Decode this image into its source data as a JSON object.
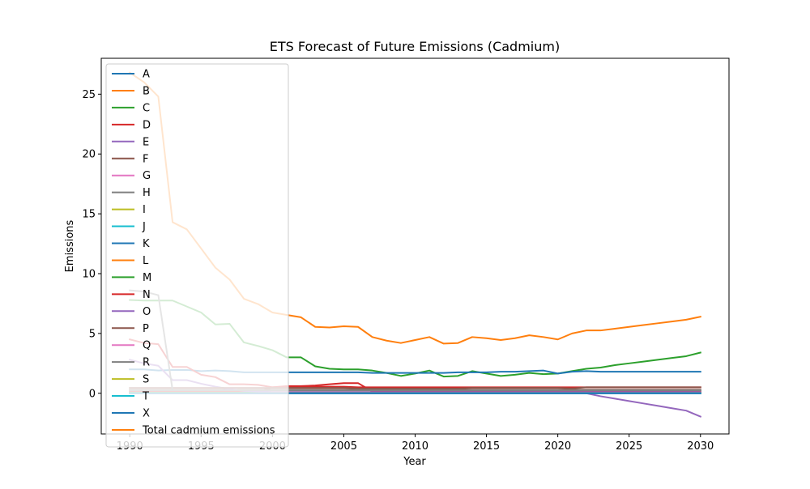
{
  "chart_data": {
    "type": "line",
    "title": "ETS Forecast of Future Emissions (Cadmium)",
    "xlabel": "Year",
    "ylabel": "Emissions",
    "xlim": [
      1988,
      2032
    ],
    "ylim": [
      -3.4,
      28
    ],
    "xticks": [
      1990,
      1995,
      2000,
      2005,
      2010,
      2015,
      2020,
      2025,
      2030
    ],
    "xtick_labels": [
      "1990",
      "1995",
      "2000",
      "2005",
      "2010",
      "2015",
      "2020",
      "2025",
      "2030"
    ],
    "yticks": [
      0,
      5,
      10,
      15,
      20,
      25
    ],
    "ytick_labels": [
      "0",
      "5",
      "10",
      "15",
      "20",
      "25"
    ],
    "grid": false,
    "legend_position": "upper left",
    "x": [
      1990,
      1991,
      1992,
      1993,
      1994,
      1995,
      1996,
      1997,
      1998,
      1999,
      2000,
      2001,
      2002,
      2003,
      2004,
      2005,
      2006,
      2007,
      2008,
      2009,
      2010,
      2011,
      2012,
      2013,
      2014,
      2015,
      2016,
      2017,
      2018,
      2019,
      2020,
      2021,
      2022,
      2023,
      2024,
      2025,
      2026,
      2027,
      2028,
      2029,
      2030
    ],
    "series": [
      {
        "name": "A",
        "color": "#1f77b4",
        "values": [
          0.05,
          0.05,
          0.05,
          0.05,
          0.05,
          0.05,
          0.05,
          0.05,
          0.05,
          0.05,
          0.05,
          0.05,
          0.05,
          0.05,
          0.05,
          0.05,
          0.05,
          0.05,
          0.05,
          0.05,
          0.05,
          0.05,
          0.05,
          0.05,
          0.05,
          0.05,
          0.05,
          0.05,
          0.05,
          0.05,
          0.05,
          0.05,
          0.05,
          0.05,
          0.05,
          0.05,
          0.05,
          0.05,
          0.05,
          0.05,
          0.05
        ]
      },
      {
        "name": "B",
        "color": "#ff7f0e",
        "values": [
          0.1,
          0.1,
          0.1,
          0.1,
          0.1,
          0.1,
          0.1,
          0.1,
          0.1,
          0.1,
          0.1,
          0.1,
          0.1,
          0.1,
          0.1,
          0.1,
          0.1,
          0.1,
          0.1,
          0.1,
          0.1,
          0.1,
          0.1,
          0.1,
          0.1,
          0.1,
          0.1,
          0.1,
          0.1,
          0.1,
          0.1,
          0.1,
          0.1,
          0.1,
          0.1,
          0.1,
          0.1,
          0.1,
          0.1,
          0.1,
          0.1
        ]
      },
      {
        "name": "C",
        "color": "#2ca02c",
        "values": [
          7.8,
          7.75,
          7.75,
          7.75,
          7.25,
          6.75,
          5.75,
          5.8,
          4.25,
          3.95,
          3.6,
          3.0,
          3.0,
          2.25,
          2.05,
          2.0,
          2.0,
          1.9,
          1.7,
          1.45,
          1.65,
          1.9,
          1.4,
          1.45,
          1.85,
          1.65,
          1.45,
          1.55,
          1.7,
          1.6,
          1.65,
          1.85,
          2.05,
          2.15,
          2.35,
          2.5,
          2.65,
          2.8,
          2.95,
          3.1,
          3.4
        ]
      },
      {
        "name": "D",
        "color": "#d62728",
        "values": [
          0.15,
          0.15,
          0.15,
          0.15,
          0.15,
          0.15,
          0.15,
          0.15,
          0.15,
          0.15,
          0.5,
          0.6,
          0.6,
          0.65,
          0.75,
          0.85,
          0.85,
          0.15,
          0.15,
          0.2,
          0.2,
          0.2,
          0.2,
          0.2,
          0.2,
          0.2,
          0.2,
          0.2,
          0.2,
          0.2,
          0.2,
          0.2,
          0.2,
          0.2,
          0.2,
          0.2,
          0.2,
          0.2,
          0.2,
          0.2,
          0.2
        ]
      },
      {
        "name": "E",
        "color": "#9467bd",
        "values": [
          0.0,
          0.0,
          0.0,
          0.0,
          0.0,
          0.0,
          0.0,
          0.0,
          0.0,
          0.0,
          0.0,
          0.0,
          0.0,
          0.0,
          0.0,
          0.0,
          0.0,
          0.0,
          0.0,
          0.0,
          0.0,
          0.0,
          0.0,
          0.0,
          0.0,
          0.0,
          0.0,
          0.0,
          0.0,
          0.0,
          0.0,
          0.0,
          0.0,
          -0.25,
          -0.45,
          -0.65,
          -0.85,
          -1.05,
          -1.25,
          -1.45,
          -1.95
        ]
      },
      {
        "name": "F",
        "color": "#8c564b",
        "values": [
          0.3,
          0.3,
          0.3,
          0.3,
          0.3,
          0.3,
          0.3,
          0.3,
          0.3,
          0.3,
          0.3,
          0.3,
          0.3,
          0.3,
          0.3,
          0.3,
          0.3,
          0.3,
          0.3,
          0.3,
          0.3,
          0.3,
          0.3,
          0.3,
          0.3,
          0.3,
          0.3,
          0.3,
          0.3,
          0.3,
          0.3,
          0.3,
          0.3,
          0.3,
          0.3,
          0.3,
          0.3,
          0.3,
          0.3,
          0.3,
          0.3
        ]
      },
      {
        "name": "G",
        "color": "#e377c2",
        "values": [
          0.02,
          0.02,
          0.02,
          0.02,
          0.02,
          0.02,
          0.02,
          0.02,
          0.02,
          0.02,
          0.02,
          0.02,
          0.02,
          0.02,
          0.02,
          0.02,
          0.02,
          0.02,
          0.02,
          0.02,
          0.02,
          0.02,
          0.02,
          0.02,
          0.02,
          0.02,
          0.02,
          0.02,
          0.02,
          0.02,
          0.02,
          0.02,
          0.02,
          0.02,
          0.02,
          0.02,
          0.02,
          0.02,
          0.02,
          0.02,
          0.02
        ]
      },
      {
        "name": "H",
        "color": "#7f7f7f",
        "values": [
          0.25,
          0.25,
          0.25,
          0.25,
          0.25,
          0.25,
          0.25,
          0.25,
          0.25,
          0.25,
          0.25,
          0.25,
          0.25,
          0.25,
          0.25,
          0.25,
          0.25,
          0.25,
          0.25,
          0.25,
          0.25,
          0.25,
          0.25,
          0.25,
          0.25,
          0.25,
          0.25,
          0.25,
          0.25,
          0.25,
          0.25,
          0.25,
          0.25,
          0.25,
          0.25,
          0.25,
          0.25,
          0.25,
          0.25,
          0.25,
          0.25
        ]
      },
      {
        "name": "I",
        "color": "#bcbd22",
        "values": [
          0.02,
          0.02,
          0.02,
          0.02,
          0.02,
          0.02,
          0.02,
          0.02,
          0.02,
          0.02,
          0.02,
          0.02,
          0.02,
          0.02,
          0.02,
          0.02,
          0.02,
          0.02,
          0.02,
          0.02,
          0.02,
          0.02,
          0.02,
          0.02,
          0.02,
          0.02,
          0.02,
          0.02,
          0.02,
          0.02,
          0.02,
          0.02,
          0.02,
          0.02,
          0.02,
          0.02,
          0.02,
          0.02,
          0.02,
          0.02,
          0.02
        ]
      },
      {
        "name": "J",
        "color": "#17becf",
        "values": [
          0.0,
          0.0,
          0.0,
          0.0,
          0.0,
          0.0,
          0.0,
          0.0,
          0.0,
          0.0,
          0.0,
          0.0,
          0.0,
          0.0,
          0.0,
          0.0,
          0.0,
          0.0,
          0.0,
          0.0,
          0.0,
          0.0,
          0.0,
          0.0,
          0.0,
          0.0,
          0.0,
          0.0,
          0.0,
          0.0,
          0.0,
          0.0,
          0.0,
          0.0,
          0.0,
          0.0,
          0.0,
          0.0,
          0.0,
          0.0,
          0.0
        ]
      },
      {
        "name": "K",
        "color": "#1f77b4",
        "values": [
          2.0,
          2.0,
          1.9,
          1.95,
          1.95,
          1.85,
          1.9,
          1.85,
          1.75,
          1.75,
          1.75,
          1.75,
          1.75,
          1.75,
          1.75,
          1.75,
          1.75,
          1.7,
          1.7,
          1.7,
          1.7,
          1.7,
          1.7,
          1.75,
          1.75,
          1.75,
          1.8,
          1.8,
          1.85,
          1.9,
          1.65,
          1.8,
          1.85,
          1.8,
          1.8,
          1.8,
          1.8,
          1.8,
          1.8,
          1.8,
          1.8
        ]
      },
      {
        "name": "L",
        "color": "#ff7f0e",
        "values": [
          26.8,
          26.0,
          24.8,
          14.3,
          13.7,
          12.1,
          10.5,
          9.5,
          7.9,
          7.45,
          6.75,
          6.55,
          6.35,
          5.55,
          5.5,
          5.6,
          5.55,
          4.7,
          4.4,
          4.2,
          4.45,
          4.7,
          4.15,
          4.2,
          4.7,
          4.6,
          4.45,
          4.6,
          4.85,
          4.7,
          4.5,
          5.0,
          5.25,
          5.25,
          5.4,
          5.55,
          5.7,
          5.85,
          6.0,
          6.15,
          6.4
        ]
      },
      {
        "name": "M",
        "color": "#2ca02c",
        "values": [
          0.05,
          0.05,
          0.05,
          0.05,
          0.05,
          0.05,
          0.05,
          0.05,
          0.05,
          0.05,
          0.05,
          0.05,
          0.05,
          0.05,
          0.05,
          0.05,
          0.05,
          0.05,
          0.05,
          0.05,
          0.05,
          0.05,
          0.05,
          0.05,
          0.05,
          0.05,
          0.05,
          0.05,
          0.05,
          0.05,
          0.05,
          0.05,
          0.05,
          0.05,
          0.05,
          0.05,
          0.05,
          0.05,
          0.05,
          0.05,
          0.05
        ]
      },
      {
        "name": "N",
        "color": "#d62728",
        "values": [
          4.5,
          4.2,
          4.1,
          2.2,
          2.2,
          1.55,
          1.35,
          0.75,
          0.75,
          0.7,
          0.5,
          0.55,
          0.55,
          0.55,
          0.55,
          0.55,
          0.5,
          0.5,
          0.5,
          0.5,
          0.5,
          0.5,
          0.5,
          0.5,
          0.5,
          0.5,
          0.5,
          0.5,
          0.5,
          0.5,
          0.5,
          0.5,
          0.5,
          0.5,
          0.5,
          0.5,
          0.5,
          0.5,
          0.5,
          0.5,
          0.5
        ]
      },
      {
        "name": "O",
        "color": "#9467bd",
        "values": [
          2.8,
          2.5,
          2.3,
          1.1,
          1.1,
          0.8,
          0.55,
          0.35,
          0.2,
          0.15,
          0.1,
          0.1,
          0.1,
          0.1,
          0.1,
          0.1,
          0.1,
          0.1,
          0.1,
          0.1,
          0.1,
          0.1,
          0.1,
          0.1,
          0.1,
          0.1,
          0.1,
          0.1,
          0.1,
          0.1,
          0.1,
          0.1,
          0.1,
          0.1,
          0.1,
          0.1,
          0.1,
          0.1,
          0.1,
          0.1,
          0.1
        ]
      },
      {
        "name": "P",
        "color": "#8c564b",
        "values": [
          0.45,
          0.45,
          0.45,
          0.45,
          0.45,
          0.45,
          0.45,
          0.45,
          0.45,
          0.45,
          0.45,
          0.45,
          0.45,
          0.45,
          0.45,
          0.45,
          0.4,
          0.4,
          0.4,
          0.4,
          0.4,
          0.4,
          0.4,
          0.4,
          0.45,
          0.45,
          0.45,
          0.45,
          0.45,
          0.45,
          0.45,
          0.4,
          0.5,
          0.5,
          0.5,
          0.5,
          0.5,
          0.5,
          0.5,
          0.5,
          0.5
        ]
      },
      {
        "name": "Q",
        "color": "#e377c2",
        "values": [
          0.02,
          0.02,
          0.02,
          0.02,
          0.02,
          0.02,
          0.02,
          0.02,
          0.02,
          0.02,
          0.02,
          0.02,
          0.02,
          0.02,
          0.02,
          0.02,
          0.02,
          0.02,
          0.02,
          0.02,
          0.02,
          0.02,
          0.02,
          0.02,
          0.02,
          0.02,
          0.02,
          0.02,
          0.02,
          0.02,
          0.02,
          0.02,
          0.02,
          0.02,
          0.02,
          0.02,
          0.02,
          0.02,
          0.02,
          0.02,
          0.02
        ]
      },
      {
        "name": "R",
        "color": "#7f7f7f",
        "values": [
          8.6,
          8.5,
          8.2,
          0.25,
          0.25,
          0.25,
          0.25,
          0.25,
          0.25,
          0.25,
          0.25,
          0.25,
          0.25,
          0.25,
          0.25,
          0.25,
          0.25,
          0.25,
          0.25,
          0.25,
          0.25,
          0.25,
          0.25,
          0.25,
          0.25,
          0.25,
          0.25,
          0.25,
          0.25,
          0.25,
          0.25,
          0.25,
          0.25,
          0.25,
          0.25,
          0.25,
          0.25,
          0.25,
          0.25,
          0.25,
          0.25
        ]
      },
      {
        "name": "S",
        "color": "#bcbd22",
        "values": [
          0.02,
          0.02,
          0.02,
          0.02,
          0.02,
          0.02,
          0.02,
          0.02,
          0.02,
          0.02,
          0.02,
          0.02,
          0.02,
          0.02,
          0.02,
          0.02,
          0.02,
          0.02,
          0.02,
          0.02,
          0.02,
          0.02,
          0.02,
          0.02,
          0.02,
          0.02,
          0.02,
          0.02,
          0.02,
          0.02,
          0.02,
          0.02,
          0.02,
          0.02,
          0.02,
          0.02,
          0.02,
          0.02,
          0.02,
          0.02,
          0.02
        ]
      },
      {
        "name": "T",
        "color": "#17becf",
        "values": [
          0.0,
          0.0,
          0.0,
          0.0,
          0.0,
          0.0,
          0.0,
          0.0,
          0.0,
          0.0,
          0.0,
          0.0,
          0.0,
          0.0,
          0.0,
          0.0,
          0.0,
          0.0,
          0.0,
          0.0,
          0.0,
          0.0,
          0.0,
          0.0,
          0.0,
          0.0,
          0.0,
          0.0,
          0.0,
          0.0,
          0.0,
          0.0,
          0.0,
          0.0,
          0.0,
          0.0,
          0.0,
          0.0,
          0.0,
          0.0,
          0.0
        ]
      },
      {
        "name": "X",
        "color": "#1f77b4",
        "values": [
          0.0,
          0.0,
          0.0,
          0.0,
          0.0,
          0.0,
          0.0,
          0.0,
          0.0,
          0.0,
          0.0,
          0.0,
          0.0,
          0.0,
          0.0,
          0.0,
          0.0,
          0.0,
          0.0,
          0.0,
          0.0,
          0.0,
          0.0,
          0.0,
          0.0,
          0.0,
          0.0,
          0.0,
          0.0,
          0.0,
          0.0,
          0.0,
          0.0,
          0.0,
          0.0,
          0.0,
          0.0,
          0.0,
          0.0,
          0.0,
          0.0
        ]
      },
      {
        "name": "Total cadmium emissions",
        "color": "#ff7f0e",
        "values": [
          null,
          null,
          null,
          null,
          null,
          null,
          null,
          null,
          null,
          null,
          null,
          null,
          null,
          null,
          null,
          null,
          null,
          null,
          null,
          null,
          null,
          null,
          null,
          null,
          null,
          null,
          null,
          null,
          null,
          null,
          null,
          null,
          null,
          null,
          null,
          null,
          null,
          null,
          null,
          null,
          null
        ]
      }
    ]
  }
}
